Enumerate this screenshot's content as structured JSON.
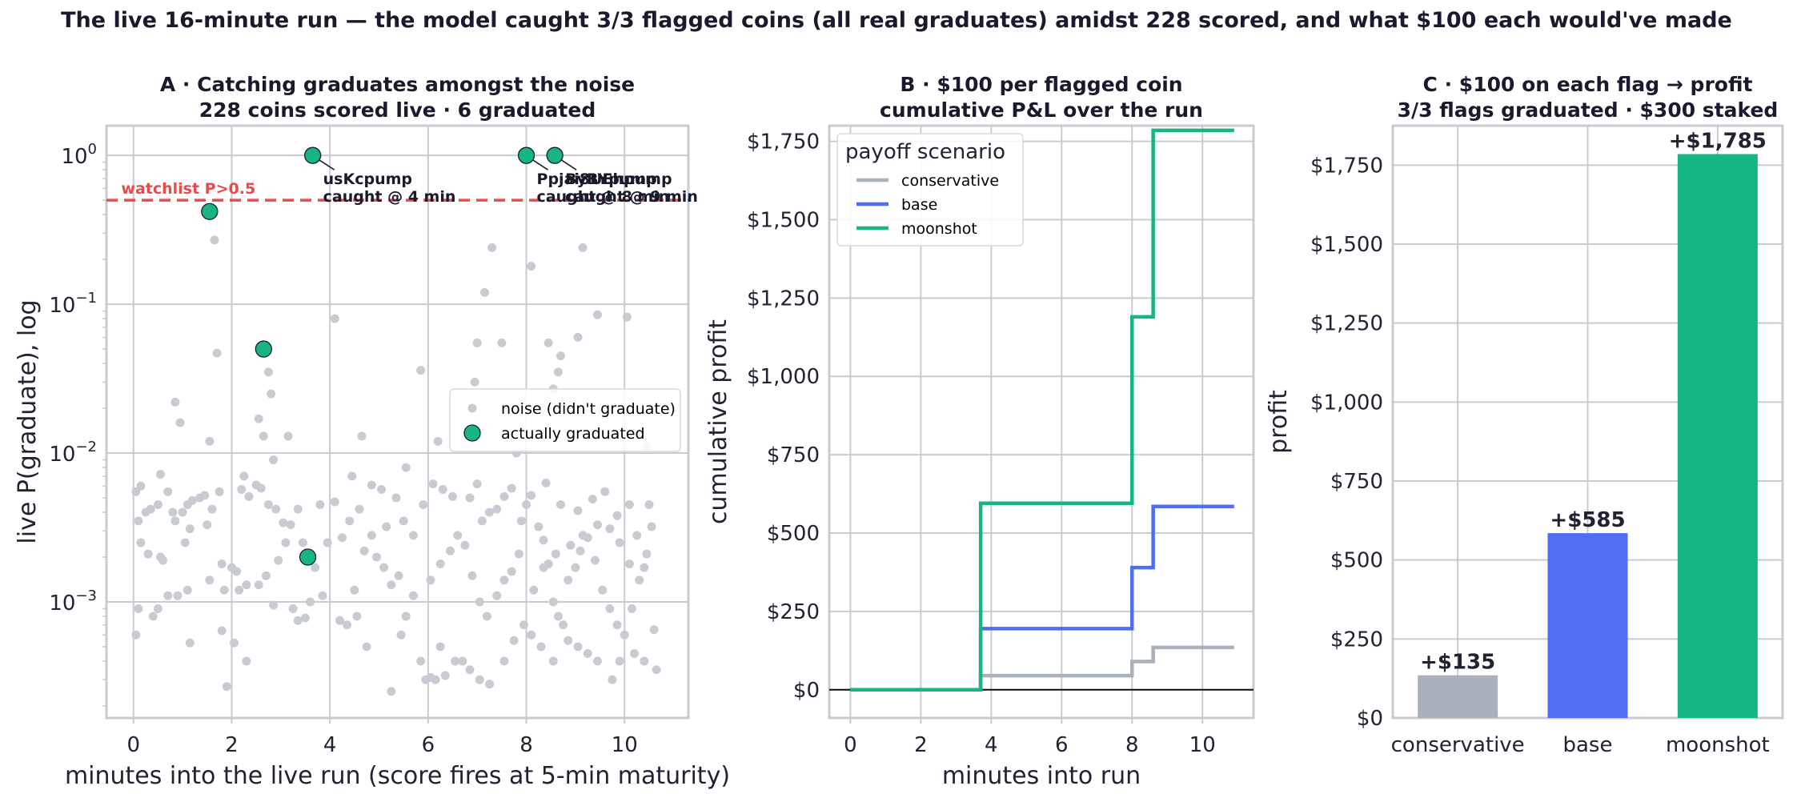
{
  "figure_title": "The live 16-minute run — the model caught 3/3 flagged coins (all real graduates) amidst 228 scored, and what $100 each would've made",
  "chart_data": [
    {
      "id": "A",
      "type": "scatter",
      "title_lines": [
        "A · Catching graduates amongst the noise",
        "228 coins scored live · 6 graduated"
      ],
      "xlabel": "minutes into the live run (score fires at 5-min maturity)",
      "ylabel": "live P(graduate), log",
      "xlim": [
        -0.55,
        11.3
      ],
      "yscale": "log",
      "ylim_log10": [
        -3.78,
        0.2
      ],
      "x_ticks": [
        0,
        2,
        4,
        6,
        8,
        10
      ],
      "y_ticks": [
        {
          "base": "10",
          "exp": "0",
          "log": 0
        },
        {
          "base": "10",
          "exp": "−1",
          "log": -1
        },
        {
          "base": "10",
          "exp": "−2",
          "log": -2
        },
        {
          "base": "10",
          "exp": "−3",
          "log": -3
        }
      ],
      "threshold": {
        "value": 0.5,
        "label": "watchlist P>0.5",
        "color": "#e74c4c"
      },
      "legend": {
        "position": "center-right",
        "items": [
          {
            "label": "noise (didn't graduate)",
            "color": "#c8ccd2",
            "kind": "dot"
          },
          {
            "label": "actually graduated",
            "color": "#17b584",
            "kind": "circle"
          }
        ]
      },
      "noise_color": "#c8ccd2",
      "graduated_color": "#17b584",
      "graduated_points": [
        [
          1.55,
          0.42
        ],
        [
          2.65,
          0.05
        ],
        [
          3.55,
          0.002
        ],
        [
          3.65,
          1.0
        ],
        [
          8.0,
          1.0
        ],
        [
          8.58,
          1.0
        ]
      ],
      "annotations": [
        {
          "lines": [
            "usKcpump",
            "caught @ 4 min"
          ],
          "x": 3.65,
          "y": 1.0
        },
        {
          "lines": [
            "Ppjai8UEhpump",
            "caught @ 8 min"
          ],
          "x": 8.0,
          "y": 1.0
        },
        {
          "lines": [
            "ByBYpump",
            "caught @ 9 min"
          ],
          "x": 8.58,
          "y": 1.0
        }
      ],
      "noise_points": [
        [
          1.65,
          0.27
        ],
        [
          1.7,
          0.047
        ],
        [
          1.55,
          0.012
        ],
        [
          0.85,
          0.022
        ],
        [
          0.95,
          0.016
        ],
        [
          7.3,
          0.24
        ],
        [
          7.15,
          0.12
        ],
        [
          7.5,
          0.055
        ],
        [
          7.0,
          0.055
        ],
        [
          6.95,
          0.03
        ],
        [
          8.1,
          0.18
        ],
        [
          9.15,
          0.24
        ],
        [
          9.45,
          0.085
        ],
        [
          10.05,
          0.082
        ],
        [
          9.05,
          0.06
        ],
        [
          8.7,
          0.045
        ],
        [
          8.65,
          0.035
        ],
        [
          8.55,
          0.027
        ],
        [
          8.45,
          0.055
        ],
        [
          5.85,
          0.036
        ],
        [
          4.1,
          0.08
        ],
        [
          2.75,
          0.035
        ],
        [
          2.8,
          0.025
        ],
        [
          2.55,
          0.017
        ],
        [
          2.65,
          0.013
        ],
        [
          2.25,
          0.007
        ],
        [
          2.85,
          0.009
        ],
        [
          6.2,
          0.012
        ],
        [
          5.55,
          0.008
        ],
        [
          4.45,
          0.007
        ],
        [
          4.65,
          0.013
        ],
        [
          3.15,
          0.013
        ],
        [
          7.8,
          0.01
        ],
        [
          9.7,
          0.013
        ],
        [
          10.45,
          0.011
        ],
        [
          7.25,
          0.004
        ],
        [
          0.05,
          0.0055
        ],
        [
          0.15,
          0.006
        ],
        [
          0.25,
          0.004
        ],
        [
          0.35,
          0.0042
        ],
        [
          0.5,
          0.0045
        ],
        [
          0.55,
          0.0072
        ],
        [
          0.7,
          0.0055
        ],
        [
          0.8,
          0.004
        ],
        [
          1.0,
          0.004
        ],
        [
          1.1,
          0.0045
        ],
        [
          1.2,
          0.0048
        ],
        [
          1.35,
          0.005
        ],
        [
          1.45,
          0.0052
        ],
        [
          1.6,
          0.0042
        ],
        [
          1.75,
          0.0055
        ],
        [
          0.1,
          0.0035
        ],
        [
          0.15,
          0.0025
        ],
        [
          0.3,
          0.0021
        ],
        [
          0.55,
          0.002
        ],
        [
          0.6,
          0.0019
        ],
        [
          0.85,
          0.0035
        ],
        [
          1.05,
          0.0025
        ],
        [
          1.15,
          0.0031
        ],
        [
          1.5,
          0.0033
        ],
        [
          1.8,
          0.0018
        ],
        [
          2.0,
          0.0017
        ],
        [
          2.1,
          0.0016
        ],
        [
          0.1,
          0.0009
        ],
        [
          0.4,
          0.0008
        ],
        [
          0.5,
          0.0009
        ],
        [
          0.7,
          0.0011
        ],
        [
          0.9,
          0.0011
        ],
        [
          1.1,
          0.0012
        ],
        [
          1.55,
          0.0014
        ],
        [
          1.85,
          0.0012
        ],
        [
          2.15,
          0.0012
        ],
        [
          2.3,
          0.0013
        ],
        [
          0.05,
          0.0006
        ],
        [
          1.15,
          0.00053
        ],
        [
          1.8,
          0.00064
        ],
        [
          2.05,
          0.00053
        ],
        [
          2.3,
          0.0004
        ],
        [
          1.9,
          0.00027
        ],
        [
          2.2,
          0.0057
        ],
        [
          2.35,
          0.0051
        ],
        [
          2.5,
          0.0061
        ],
        [
          2.6,
          0.0058
        ],
        [
          2.75,
          0.0045
        ],
        [
          2.9,
          0.0042
        ],
        [
          3.05,
          0.0034
        ],
        [
          3.2,
          0.0033
        ],
        [
          3.35,
          0.0042
        ],
        [
          3.45,
          0.0025
        ],
        [
          3.1,
          0.0025
        ],
        [
          2.95,
          0.0019
        ],
        [
          2.7,
          0.0015
        ],
        [
          2.55,
          0.0013
        ],
        [
          2.85,
          0.00095
        ],
        [
          3.25,
          0.0009
        ],
        [
          3.35,
          0.00075
        ],
        [
          3.5,
          0.00078
        ],
        [
          3.6,
          0.001
        ],
        [
          3.7,
          0.0017
        ],
        [
          3.8,
          0.0045
        ],
        [
          3.95,
          0.0025
        ],
        [
          3.85,
          0.0011
        ],
        [
          4.1,
          0.0047
        ],
        [
          4.2,
          0.00075
        ],
        [
          4.35,
          0.0007
        ],
        [
          4.5,
          0.0012
        ],
        [
          4.55,
          0.0008
        ],
        [
          4.7,
          0.0022
        ],
        [
          4.85,
          0.0028
        ],
        [
          4.95,
          0.002
        ],
        [
          5.1,
          0.0017
        ],
        [
          5.25,
          0.0013
        ],
        [
          5.4,
          0.0015
        ],
        [
          5.55,
          0.0008
        ],
        [
          5.7,
          0.0011
        ],
        [
          5.85,
          0.0004
        ],
        [
          5.95,
          0.0003
        ],
        [
          6.05,
          0.00031
        ],
        [
          6.15,
          0.0003
        ],
        [
          6.35,
          0.00032
        ],
        [
          6.55,
          0.0004
        ],
        [
          6.25,
          0.0005
        ],
        [
          6.05,
          0.0014
        ],
        [
          6.25,
          0.0018
        ],
        [
          6.45,
          0.0022
        ],
        [
          6.6,
          0.0028
        ],
        [
          6.75,
          0.0024
        ],
        [
          6.9,
          0.0015
        ],
        [
          7.05,
          0.001
        ],
        [
          7.2,
          0.0008
        ],
        [
          7.4,
          0.0011
        ],
        [
          7.55,
          0.0014
        ],
        [
          7.7,
          0.0016
        ],
        [
          7.85,
          0.0021
        ],
        [
          7.9,
          0.0035
        ],
        [
          8.0,
          0.0045
        ],
        [
          8.1,
          0.0052
        ],
        [
          8.25,
          0.0032
        ],
        [
          8.35,
          0.0026
        ],
        [
          8.45,
          0.0018
        ],
        [
          8.55,
          0.001
        ],
        [
          8.65,
          0.0008
        ],
        [
          8.75,
          0.0007
        ],
        [
          8.85,
          0.0014
        ],
        [
          9.0,
          0.0017
        ],
        [
          9.1,
          0.0022
        ],
        [
          9.25,
          0.0027
        ],
        [
          9.4,
          0.0019
        ],
        [
          9.55,
          0.0012
        ],
        [
          9.7,
          0.0009
        ],
        [
          9.85,
          0.0007
        ],
        [
          10.0,
          0.0006
        ],
        [
          10.15,
          0.0009
        ],
        [
          10.3,
          0.0014
        ],
        [
          10.45,
          0.0021
        ],
        [
          10.55,
          0.0032
        ],
        [
          10.5,
          0.0045
        ],
        [
          10.6,
          0.00065
        ],
        [
          10.65,
          0.00035
        ],
        [
          10.4,
          0.0004
        ],
        [
          10.2,
          0.00045
        ],
        [
          9.9,
          0.0004
        ],
        [
          9.75,
          0.0003
        ],
        [
          9.45,
          0.0004
        ],
        [
          9.25,
          0.00045
        ],
        [
          9.05,
          0.0005
        ],
        [
          8.85,
          0.00055
        ],
        [
          8.55,
          0.0004
        ],
        [
          8.3,
          0.0005
        ],
        [
          8.1,
          0.0006
        ],
        [
          7.95,
          0.0007
        ],
        [
          7.75,
          0.00055
        ],
        [
          7.55,
          0.0004
        ],
        [
          7.25,
          0.00028
        ],
        [
          7.05,
          0.0003
        ],
        [
          6.85,
          0.00035
        ],
        [
          6.7,
          0.0004
        ],
        [
          6.85,
          0.005
        ],
        [
          7.0,
          0.0062
        ],
        [
          7.1,
          0.0035
        ],
        [
          7.4,
          0.0042
        ],
        [
          7.55,
          0.0051
        ],
        [
          7.7,
          0.0058
        ],
        [
          8.4,
          0.0063
        ],
        [
          8.7,
          0.0045
        ],
        [
          9.05,
          0.0041
        ],
        [
          9.35,
          0.0049
        ],
        [
          9.6,
          0.0055
        ],
        [
          9.85,
          0.0038
        ],
        [
          10.1,
          0.0045
        ],
        [
          10.25,
          0.0028
        ],
        [
          10.4,
          0.0017
        ],
        [
          10.1,
          0.0018
        ],
        [
          9.9,
          0.0025
        ],
        [
          9.7,
          0.0031
        ],
        [
          9.45,
          0.0033
        ],
        [
          9.15,
          0.0028
        ],
        [
          8.9,
          0.0024
        ],
        [
          8.6,
          0.0021
        ],
        [
          8.35,
          0.0017
        ],
        [
          8.15,
          0.0012
        ],
        [
          5.15,
          0.0032
        ],
        [
          5.35,
          0.005
        ],
        [
          5.5,
          0.0035
        ],
        [
          5.7,
          0.0028
        ],
        [
          5.9,
          0.0045
        ],
        [
          6.1,
          0.0062
        ],
        [
          6.3,
          0.0057
        ],
        [
          6.5,
          0.0051
        ],
        [
          5.05,
          0.0057
        ],
        [
          4.85,
          0.0061
        ],
        [
          4.6,
          0.0042
        ],
        [
          4.4,
          0.0035
        ],
        [
          4.25,
          0.0027
        ],
        [
          5.25,
          0.00025
        ],
        [
          5.45,
          0.0006
        ],
        [
          4.75,
          0.0005
        ]
      ]
    },
    {
      "id": "B",
      "type": "line",
      "title_lines": [
        "B · $100 per flagged coin",
        "cumulative P&L over the run"
      ],
      "xlabel": "minutes into run",
      "ylabel": "cumulative profit",
      "xlim": [
        -0.6,
        11.45
      ],
      "ylim": [
        -90,
        1800
      ],
      "x_ticks": [
        0,
        2,
        4,
        6,
        8,
        10
      ],
      "y_ticks": [
        0,
        250,
        500,
        750,
        1000,
        1250,
        1500,
        1750
      ],
      "y_tick_labels": [
        "$0",
        "$250",
        "$500",
        "$750",
        "$1,000",
        "$1,250",
        "$1,500",
        "$1,750"
      ],
      "legend": {
        "title": "payoff scenario",
        "position": "upper left"
      },
      "series": [
        {
          "name": "conservative",
          "color": "#aab1ba",
          "steps": [
            [
              0,
              0
            ],
            [
              3.7,
              45
            ],
            [
              8.0,
              90
            ],
            [
              8.6,
              135
            ],
            [
              10.9,
              135
            ]
          ]
        },
        {
          "name": "base",
          "color": "#4f6ef2",
          "steps": [
            [
              0,
              0
            ],
            [
              3.7,
              195
            ],
            [
              8.0,
              390
            ],
            [
              8.6,
              585
            ],
            [
              10.9,
              585
            ]
          ]
        },
        {
          "name": "moonshot",
          "color": "#17b584",
          "steps": [
            [
              0,
              0
            ],
            [
              3.7,
              595
            ],
            [
              8.0,
              1190
            ],
            [
              8.6,
              1785
            ],
            [
              10.9,
              1785
            ]
          ]
        }
      ]
    },
    {
      "id": "C",
      "type": "bar",
      "title_lines": [
        "C · $100 on each flag → profit",
        "3/3 flags graduated · $300 staked"
      ],
      "xlabel": "",
      "ylabel": "profit",
      "ylim": [
        0,
        1875
      ],
      "y_ticks": [
        0,
        250,
        500,
        750,
        1000,
        1250,
        1500,
        1750
      ],
      "y_tick_labels": [
        "$0",
        "$250",
        "$500",
        "$750",
        "$1,000",
        "$1,250",
        "$1,500",
        "$1,750"
      ],
      "categories": [
        "conservative",
        "base",
        "moonshot"
      ],
      "values": [
        135,
        585,
        1785
      ],
      "value_labels": [
        "+$135",
        "+$585",
        "+$1,785"
      ],
      "colors": [
        "#aab1ba",
        "#4f6ef2",
        "#17b584"
      ]
    }
  ]
}
